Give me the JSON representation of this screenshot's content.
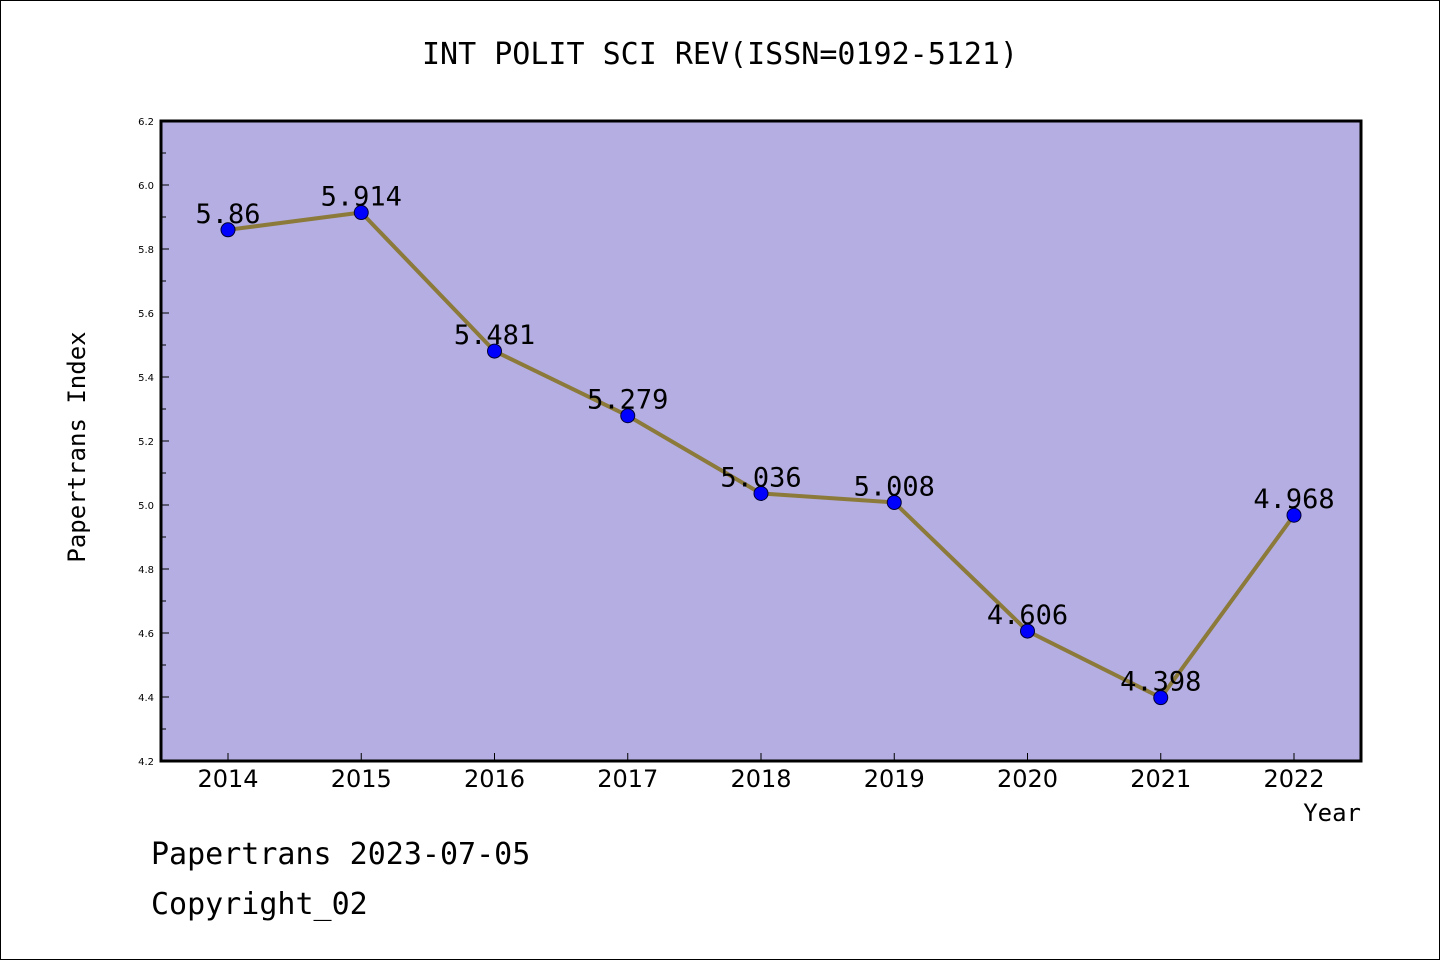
{
  "chart_data": {
    "type": "line",
    "title": "INT POLIT SCI REV(ISSN=0192-5121)",
    "xlabel": "Year",
    "ylabel": "Papertrans Index",
    "categories": [
      "2014",
      "2015",
      "2016",
      "2017",
      "2018",
      "2019",
      "2020",
      "2021",
      "2022"
    ],
    "values": [
      5.86,
      5.914,
      5.481,
      5.279,
      5.036,
      5.008,
      4.606,
      4.398,
      4.968
    ],
    "data_labels": [
      "5.86",
      "5.914",
      "5.481",
      "5.279",
      "5.036",
      "5.008",
      "4.606",
      "4.398",
      "4.968"
    ],
    "ylim": [
      4.2,
      6.2
    ],
    "yticks": [
      "4.2",
      "4.4",
      "4.6",
      "4.8",
      "5.0",
      "5.2",
      "5.4",
      "5.6",
      "5.8",
      "6.0",
      "6.2"
    ],
    "grid": false,
    "legend": "none",
    "colors": {
      "plot_background": "#b4aee2",
      "line": "#8c7a3a",
      "marker": "#0000ff",
      "frame": "#000000"
    }
  },
  "footer": {
    "line1": "Papertrans 2023-07-05",
    "line2": "Copyright_02"
  }
}
